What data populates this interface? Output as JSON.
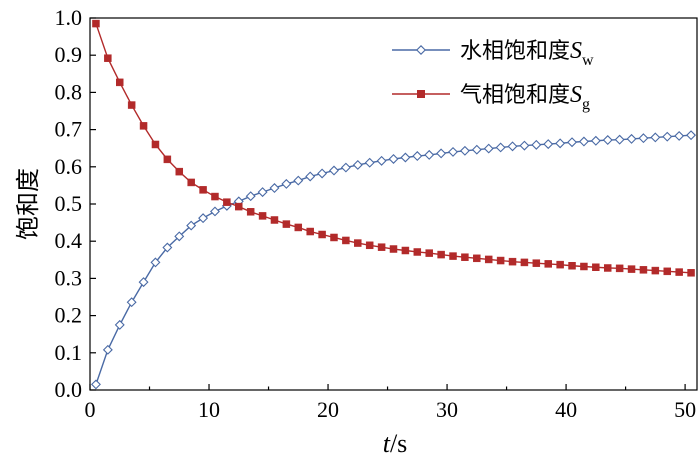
{
  "chart_data": {
    "type": "line",
    "xlabel": {
      "var": "t",
      "unit": "/s"
    },
    "ylabel": "饱和度",
    "xlim": [
      0,
      51
    ],
    "ylim": [
      0,
      1.0
    ],
    "xticks": [
      "0",
      "10",
      "20",
      "30",
      "40",
      "50"
    ],
    "yticks": [
      "0.0",
      "0.1",
      "0.2",
      "0.3",
      "0.4",
      "0.5",
      "0.6",
      "0.7",
      "0.8",
      "0.9",
      "1.0"
    ],
    "legend_position": "top-right",
    "x": [
      0.5,
      1.5,
      2.5,
      3.5,
      4.5,
      5.5,
      6.5,
      7.5,
      8.5,
      9.5,
      10.5,
      11.5,
      12.5,
      13.5,
      14.5,
      15.5,
      16.5,
      17.5,
      18.5,
      19.5,
      20.5,
      21.5,
      22.5,
      23.5,
      24.5,
      25.5,
      26.5,
      27.5,
      28.5,
      29.5,
      30.5,
      31.5,
      32.5,
      33.5,
      34.5,
      35.5,
      36.5,
      37.5,
      38.5,
      39.5,
      40.5,
      41.5,
      42.5,
      43.5,
      44.5,
      45.5,
      46.5,
      47.5,
      48.5,
      49.5,
      50.5
    ],
    "series": [
      {
        "name": "水相饱和度",
        "symbol": "S",
        "subscript": "w",
        "color": "#4a6aa5",
        "marker": "diamond-open",
        "values": [
          0.015,
          0.108,
          0.175,
          0.236,
          0.29,
          0.343,
          0.383,
          0.413,
          0.442,
          0.462,
          0.48,
          0.495,
          0.507,
          0.521,
          0.532,
          0.543,
          0.554,
          0.563,
          0.574,
          0.582,
          0.59,
          0.598,
          0.605,
          0.611,
          0.616,
          0.621,
          0.625,
          0.629,
          0.632,
          0.636,
          0.64,
          0.643,
          0.646,
          0.649,
          0.652,
          0.655,
          0.657,
          0.659,
          0.661,
          0.663,
          0.666,
          0.668,
          0.67,
          0.672,
          0.673,
          0.675,
          0.677,
          0.679,
          0.681,
          0.683,
          0.685
        ]
      },
      {
        "name": "气相饱和度",
        "symbol": "S",
        "subscript": "g",
        "color": "#b22a2a",
        "marker": "square-filled",
        "values": [
          0.985,
          0.892,
          0.827,
          0.766,
          0.71,
          0.66,
          0.62,
          0.587,
          0.558,
          0.538,
          0.52,
          0.505,
          0.493,
          0.479,
          0.468,
          0.457,
          0.446,
          0.437,
          0.426,
          0.418,
          0.41,
          0.402,
          0.395,
          0.389,
          0.384,
          0.379,
          0.375,
          0.371,
          0.368,
          0.364,
          0.36,
          0.357,
          0.354,
          0.351,
          0.348,
          0.345,
          0.343,
          0.341,
          0.339,
          0.337,
          0.334,
          0.332,
          0.33,
          0.328,
          0.327,
          0.325,
          0.323,
          0.321,
          0.319,
          0.317,
          0.315
        ]
      }
    ]
  }
}
